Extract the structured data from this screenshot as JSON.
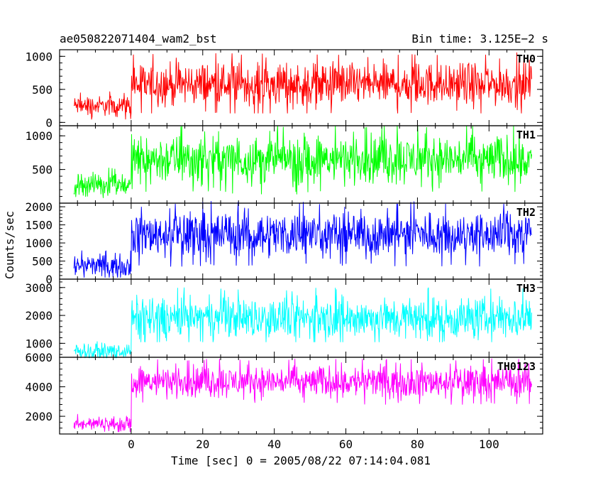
{
  "header": {
    "title": "ae050822071404_wam2_bst",
    "bin_time": "Bin time: 3.125E−2 s"
  },
  "chart_data": {
    "type": "line",
    "xlabel": "Time [sec] 0 = 2005/08/22 07:14:04.081",
    "ylabel": "Counts/sec",
    "xlim": [
      -20,
      115
    ],
    "x_ticks": [
      0,
      20,
      40,
      60,
      80,
      100
    ],
    "x_tick_labels": [
      "0",
      "20",
      "40",
      "60",
      "80",
      "100"
    ],
    "data_x_range": [
      -16,
      112
    ],
    "burst_onset_sec": 0,
    "grid": false,
    "panels": [
      {
        "name": "TH0",
        "color": "#ff0000",
        "ylim": [
          -50,
          1100
        ],
        "y_ticks": [
          0,
          500,
          1000
        ],
        "y_tick_labels": [
          "0",
          "500",
          "1000"
        ],
        "pre_burst": {
          "mean": 250,
          "min": 40,
          "max": 470
        },
        "post_burst": {
          "mean": 580,
          "min": 140,
          "max": 1090
        }
      },
      {
        "name": "TH1",
        "color": "#00ff00",
        "ylim": [
          0,
          1150
        ],
        "y_ticks": [
          500,
          1000
        ],
        "y_tick_labels": [
          "500",
          "1000"
        ],
        "pre_burst": {
          "mean": 280,
          "min": 80,
          "max": 580
        },
        "post_burst": {
          "mean": 650,
          "min": 110,
          "max": 1150
        }
      },
      {
        "name": "TH2",
        "color": "#0000ff",
        "ylim": [
          0,
          2100
        ],
        "y_ticks": [
          0,
          500,
          1000,
          1500,
          2000
        ],
        "y_tick_labels": [
          "0",
          "500",
          "1000",
          "1500",
          "2000"
        ],
        "pre_burst": {
          "mean": 370,
          "min": 50,
          "max": 900
        },
        "post_burst": {
          "mean": 1250,
          "min": 350,
          "max": 2150
        }
      },
      {
        "name": "TH3",
        "color": "#00ffff",
        "ylim": [
          500,
          3300
        ],
        "y_ticks": [
          1000,
          2000,
          3000
        ],
        "y_tick_labels": [
          "1000",
          "2000",
          "3000"
        ],
        "pre_burst": {
          "mean": 720,
          "min": 480,
          "max": 1250
        },
        "post_burst": {
          "mean": 1900,
          "min": 1050,
          "max": 3250
        }
      },
      {
        "name": "TH0123",
        "color": "#ff00ff",
        "ylim": [
          800,
          6000
        ],
        "y_ticks": [
          2000,
          4000,
          6000
        ],
        "y_tick_labels": [
          "2000",
          "4000",
          "6000"
        ],
        "pre_burst": {
          "mean": 1500,
          "min": 950,
          "max": 2300
        },
        "post_burst": {
          "mean": 4350,
          "min": 2800,
          "max": 5900
        }
      }
    ]
  }
}
